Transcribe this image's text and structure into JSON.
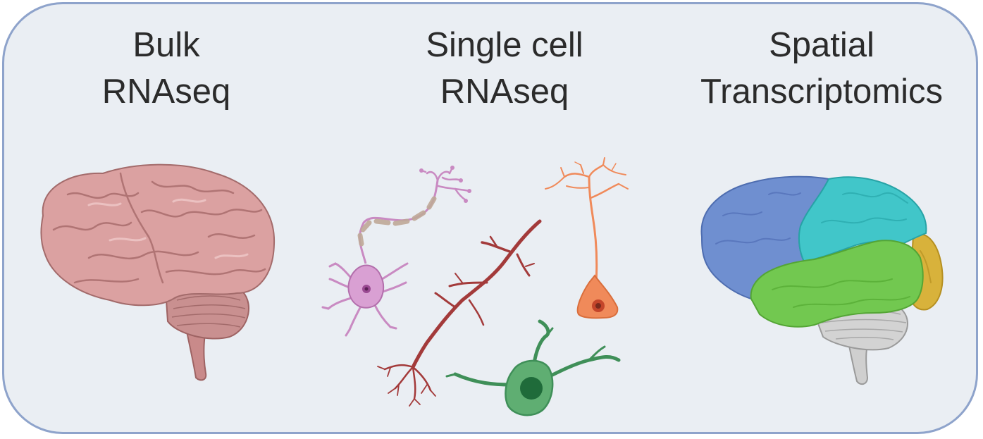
{
  "sections": [
    {
      "id": "bulk",
      "line1": "Bulk",
      "line2": "RNAseq"
    },
    {
      "id": "single",
      "line1": "Single cell",
      "line2": "RNAseq"
    },
    {
      "id": "spatial",
      "line1": "Spatial",
      "line2": "Transcriptomics"
    }
  ],
  "colors": {
    "panel_border": "#8ea3cb",
    "panel_fill": "#eaeef3",
    "brain_pink": "#d9a0a0",
    "frontal_blue": "#6e8fcf",
    "parietal_cyan": "#3fc4c8",
    "temporal_green": "#71c84f",
    "occipital_yellow": "#d7b13a",
    "cerebellum_grey": "#c9c9c9",
    "neuron_pink": "#c98ac2",
    "neuron_red": "#a33a3a",
    "neuron_orange": "#f08a5a",
    "neuron_green": "#3f8f58"
  }
}
